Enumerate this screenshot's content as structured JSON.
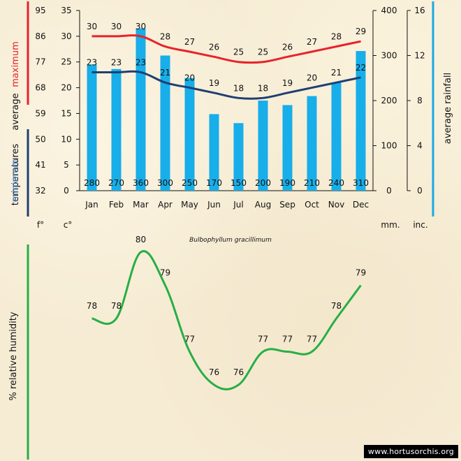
{
  "colors": {
    "max_line": "#e8222a",
    "min_line": "#1f3f72",
    "rain_bar": "#17aee9",
    "humidity_line": "#27ae45",
    "rain_axis": "#1aa8e6",
    "humidity_axis": "#27ae45"
  },
  "climate_chart": {
    "caption": "Bulbophyllum gracillimum",
    "unit_labels": {
      "fahrenheit": "f°",
      "celsius": "c°",
      "mm": "mm.",
      "inch": "inc."
    },
    "left_title": {
      "maximum": "maximum",
      "average": "average",
      "temperatures": "temperatures",
      "minimum": "minimum",
      "average2": "average"
    },
    "right_title": "average rainfall",
    "fahrenheit_ticks": [
      "95",
      "86",
      "77",
      "68",
      "59",
      "50",
      "41",
      "32"
    ],
    "celsius_ticks": [
      "35",
      "30",
      "25",
      "20",
      "15",
      "10",
      "5",
      "0"
    ],
    "mm_ticks": [
      "400",
      "300",
      "200",
      "100",
      "0"
    ],
    "inch_ticks": [
      "16",
      "12",
      "8",
      "4",
      "0"
    ]
  },
  "humidity_chart": {
    "axis_title": "% relative humidity"
  },
  "watermark": "www.hortusorchis.org",
  "chart_data": [
    {
      "type": "bar",
      "categories": [
        "Jan",
        "Feb",
        "Mar",
        "Apr",
        "May",
        "Jun",
        "Jul",
        "Aug",
        "Sep",
        "Oct",
        "Nov",
        "Dec"
      ],
      "series": [
        {
          "name": "average rainfall",
          "unit": "mm",
          "values": [
            280,
            270,
            360,
            300,
            250,
            170,
            150,
            200,
            190,
            210,
            240,
            310
          ]
        },
        {
          "name": "maximum",
          "unit": "c",
          "values": [
            30,
            30,
            30,
            28,
            27,
            26,
            25,
            25,
            26,
            27,
            28,
            29
          ]
        },
        {
          "name": "minimum",
          "unit": "c",
          "values": [
            23,
            23,
            23,
            21,
            20,
            19,
            18,
            18,
            19,
            20,
            21,
            22
          ]
        }
      ],
      "ylim_c": [
        0,
        35
      ],
      "ylim_mm": [
        0,
        400
      ]
    },
    {
      "type": "line",
      "categories": [
        "Jan",
        "Feb",
        "Mar",
        "Apr",
        "May",
        "Jun",
        "Jul",
        "Aug",
        "Sep",
        "Oct",
        "Nov",
        "Dec"
      ],
      "series": [
        {
          "name": "% relative humidity",
          "values": [
            78,
            78,
            80,
            79,
            77,
            76,
            76,
            77,
            77,
            77,
            78,
            79
          ]
        }
      ]
    }
  ]
}
